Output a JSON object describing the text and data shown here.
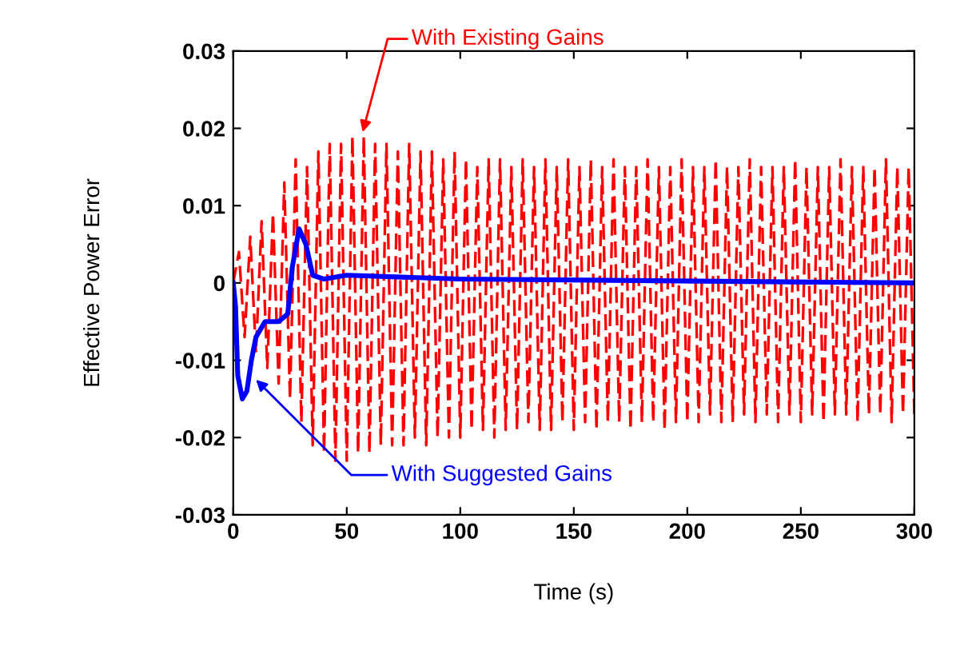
{
  "chart_data": {
    "type": "line",
    "xlabel": "Time (s)",
    "ylabel": "Effective Power Error",
    "xlim": [
      0,
      300
    ],
    "ylim": [
      -0.03,
      0.03
    ],
    "xticks": [
      0,
      50,
      100,
      150,
      200,
      250,
      300
    ],
    "yticks": [
      {
        "value": -0.03,
        "label": "-0.03"
      },
      {
        "value": -0.02,
        "label": "-0.02"
      },
      {
        "value": -0.01,
        "label": "-0.01"
      },
      {
        "value": 0,
        "label": "0"
      },
      {
        "value": 0.01,
        "label": "0.01"
      },
      {
        "value": 0.02,
        "label": "0.02"
      },
      {
        "value": 0.03,
        "label": "0.03"
      }
    ],
    "grid": false,
    "legend": false,
    "series": [
      {
        "color": "#ff0000",
        "line_style": "dashed",
        "x": [
          0,
          2.5,
          5,
          7.5,
          10,
          12.5,
          15,
          17.5,
          20,
          22.5,
          25,
          27.5,
          30,
          32.5,
          35,
          37.5,
          40,
          42.5,
          45,
          47.5,
          50,
          52.5,
          55,
          57.5,
          60,
          62.5,
          65,
          67.5,
          70,
          72.5,
          75,
          77.5,
          80,
          82.5,
          85,
          87.5,
          90,
          92.5,
          95,
          97.5,
          100,
          102.5,
          105,
          107.5,
          110,
          112.5,
          115,
          117.5,
          120,
          122.5,
          125,
          127.5,
          130,
          132.5,
          135,
          137.5,
          140,
          142.5,
          145,
          147.5,
          150,
          152.5,
          155,
          157.5,
          160,
          162.5,
          165,
          167.5,
          170,
          172.5,
          175,
          177.5,
          180,
          182.5,
          185,
          187.5,
          190,
          192.5,
          195,
          197.5,
          200,
          202.5,
          205,
          207.5,
          210,
          212.5,
          215,
          217.5,
          220,
          222.5,
          225,
          227.5,
          230,
          232.5,
          235,
          237.5,
          240,
          242.5,
          245,
          247.5,
          250,
          252.5,
          255,
          257.5,
          260,
          262.5,
          265,
          267.5,
          270,
          272.5,
          275,
          277.5,
          280,
          282.5,
          285,
          287.5,
          290,
          292.5,
          295,
          297.5,
          300
        ],
        "values": [
          0,
          0.004,
          -0.007,
          0.006,
          -0.009,
          0.008,
          -0.011,
          0.009,
          -0.013,
          0.013,
          -0.015,
          0.016,
          -0.018,
          0.015,
          -0.021,
          0.017,
          -0.022,
          0.018,
          -0.023,
          0.018,
          -0.023,
          0.019,
          -0.022,
          0.019,
          -0.022,
          0.018,
          -0.021,
          0.018,
          -0.021,
          0.017,
          -0.021,
          0.018,
          -0.02,
          0.017,
          -0.021,
          0.017,
          -0.02,
          0.016,
          -0.02,
          0.017,
          -0.02,
          0.016,
          -0.019,
          0.015,
          -0.019,
          0.016,
          -0.02,
          0.016,
          -0.019,
          0.015,
          -0.019,
          0.016,
          -0.018,
          0.015,
          -0.019,
          0.016,
          -0.019,
          0.015,
          -0.018,
          0.016,
          -0.019,
          0.015,
          -0.018,
          0.016,
          -0.019,
          0.015,
          -0.018,
          0.016,
          -0.018,
          0.015,
          -0.019,
          0.015,
          -0.018,
          0.016,
          -0.018,
          0.015,
          -0.019,
          0.015,
          -0.018,
          0.016,
          -0.018,
          0.015,
          -0.018,
          0.015,
          -0.017,
          0.016,
          -0.018,
          0.015,
          -0.018,
          0.015,
          -0.017,
          0.016,
          -0.018,
          0.015,
          -0.017,
          0.015,
          -0.018,
          0.015,
          -0.017,
          0.016,
          -0.018,
          0.015,
          -0.017,
          0.015,
          -0.018,
          0.015,
          -0.017,
          0.016,
          -0.017,
          0.015,
          -0.018,
          0.015,
          -0.017,
          0.015,
          -0.017,
          0.016,
          -0.018,
          0.015,
          -0.017,
          0.015,
          -0.017
        ]
      },
      {
        "color": "#0000ff",
        "line_style": "solid",
        "x": [
          0,
          1,
          2,
          4,
          6,
          8,
          10,
          14,
          20,
          24,
          26,
          29,
          32,
          35,
          40,
          50,
          100,
          300
        ],
        "values": [
          0,
          -0.003,
          -0.012,
          -0.015,
          -0.014,
          -0.01,
          -0.007,
          -0.005,
          -0.005,
          -0.004,
          0.002,
          0.007,
          0.005,
          0.001,
          0.0005,
          0.001,
          0.0005,
          0
        ]
      }
    ],
    "annotations": [
      {
        "text": "With Existing Gains",
        "x": 57,
        "y": 0.0195
      },
      {
        "text": "With Suggested Gains",
        "x": 10,
        "y": -0.0125
      }
    ]
  }
}
